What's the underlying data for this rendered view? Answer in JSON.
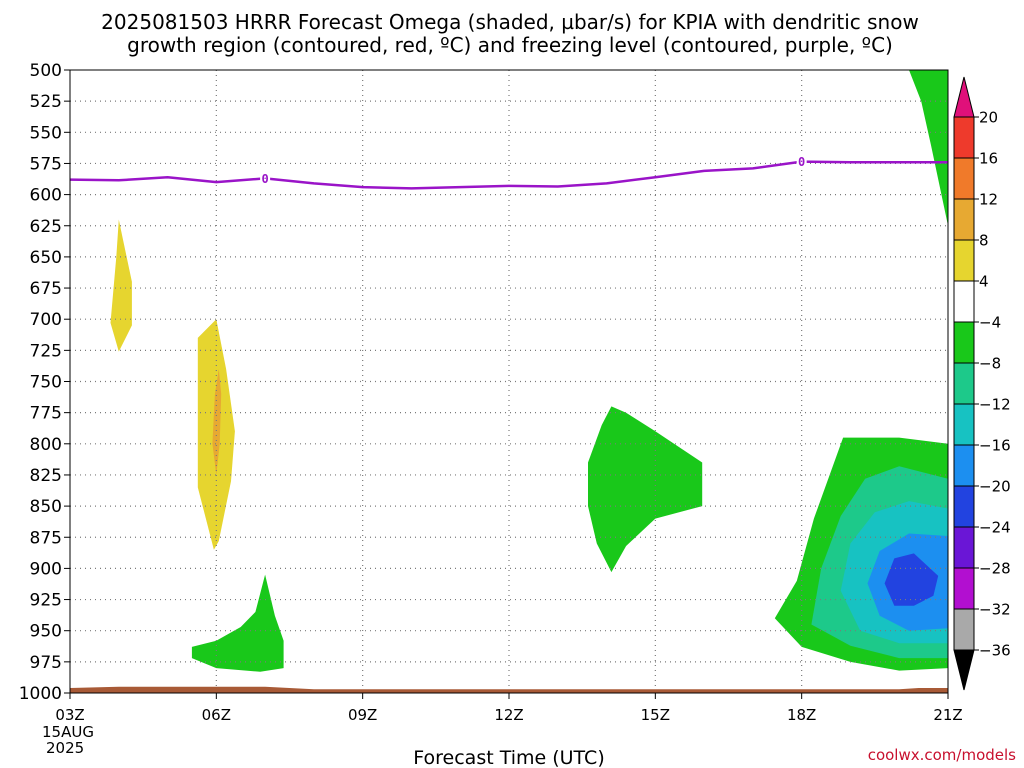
{
  "title": {
    "line1": "2025081503 HRRR Forecast Omega (shaded, µbar/s) for KPIA with dendritic snow",
    "line2": "growth region (contoured, red, ºC) and freezing level (contoured, purple, ºC)"
  },
  "credit": "coolwx.com/models",
  "chart_data": {
    "type": "heatmap",
    "title": "2025081503 HRRR Forecast Omega (shaded, µbar/s) for KPIA with dendritic snow growth region (contoured, red, ºC) and freezing level (contoured, purple, ºC)",
    "xlabel": "Forecast Time (UTC)",
    "ylabel": "",
    "x_ticks": [
      "03Z",
      "06Z",
      "09Z",
      "12Z",
      "15Z",
      "18Z",
      "21Z"
    ],
    "x_date_label": [
      "15AUG",
      "2025"
    ],
    "x_range_hours": [
      3,
      21
    ],
    "y_ticks": [
      500,
      525,
      550,
      575,
      600,
      625,
      650,
      675,
      700,
      725,
      750,
      775,
      800,
      825,
      850,
      875,
      900,
      925,
      950,
      975,
      1000
    ],
    "y_range_hpa": [
      500,
      1000
    ],
    "grid": true,
    "colorbar": {
      "labels": [
        "20",
        "16",
        "12",
        "8",
        "4",
        "−4",
        "−8",
        "−12",
        "−16",
        "−20",
        "−24",
        "−28",
        "−32",
        "−36"
      ],
      "bins": [
        {
          "lo": 20,
          "hi": null,
          "color": "#e0107a"
        },
        {
          "lo": 16,
          "hi": 20,
          "color": "#ee3a2c"
        },
        {
          "lo": 12,
          "hi": 16,
          "color": "#f07a2a"
        },
        {
          "lo": 8,
          "hi": 12,
          "color": "#e7a932"
        },
        {
          "lo": 4,
          "hi": 8,
          "color": "#e6d52f"
        },
        {
          "lo": -4,
          "hi": 4,
          "color": "#ffffff"
        },
        {
          "lo": -8,
          "hi": -4,
          "color": "#19c81a"
        },
        {
          "lo": -12,
          "hi": -8,
          "color": "#1dc98a"
        },
        {
          "lo": -16,
          "hi": -12,
          "color": "#17c2c2"
        },
        {
          "lo": -20,
          "hi": -16,
          "color": "#1c8ff0"
        },
        {
          "lo": -24,
          "hi": -20,
          "color": "#2243e0"
        },
        {
          "lo": -28,
          "hi": -24,
          "color": "#6a16d6"
        },
        {
          "lo": -32,
          "hi": -28,
          "color": "#b20fd0"
        },
        {
          "lo": -36,
          "hi": -32,
          "color": "#a9a9a9"
        },
        {
          "lo": null,
          "hi": -36,
          "color": "#000000"
        }
      ]
    },
    "freezing_level": {
      "label": "0",
      "color": "#9a14c8",
      "points": [
        [
          3,
          588
        ],
        [
          4,
          588.5
        ],
        [
          5,
          586
        ],
        [
          6,
          590
        ],
        [
          7,
          587
        ],
        [
          8,
          591
        ],
        [
          9,
          594
        ],
        [
          10,
          595
        ],
        [
          11,
          594
        ],
        [
          12,
          593
        ],
        [
          13,
          593.5
        ],
        [
          14,
          591
        ],
        [
          15,
          586
        ],
        [
          16,
          581
        ],
        [
          17,
          579
        ],
        [
          18,
          573.5
        ],
        [
          19,
          574
        ],
        [
          20,
          574
        ],
        [
          21,
          574
        ]
      ],
      "label_x": [
        7,
        18
      ]
    },
    "ground": {
      "color": "#a85a36",
      "points": [
        [
          3,
          996
        ],
        [
          4,
          995
        ],
        [
          7,
          995
        ],
        [
          8,
          997
        ],
        [
          20,
          997
        ],
        [
          20.4,
          996
        ],
        [
          21,
          996
        ]
      ]
    },
    "omega_regions": [
      {
        "name": "Omega +4 to +8 (03Z–04Z)",
        "color": "#e6d52f",
        "points": [
          [
            3.83,
            703
          ],
          [
            3.95,
            650
          ],
          [
            4.0,
            620
          ],
          [
            4.08,
            635
          ],
          [
            4.27,
            670
          ],
          [
            4.27,
            705
          ],
          [
            4.0,
            726
          ]
        ]
      },
      {
        "name": "Omega +4 to +8 (06Z)",
        "color": "#e6d52f",
        "points": [
          [
            5.62,
            835
          ],
          [
            5.62,
            715
          ],
          [
            6.0,
            700
          ],
          [
            6.2,
            740
          ],
          [
            6.38,
            790
          ],
          [
            6.3,
            830
          ],
          [
            6.05,
            878
          ],
          [
            5.95,
            885
          ]
        ]
      },
      {
        "name": "Omega +8 to +12 (06Z)",
        "color": "#e7a932",
        "points": [
          [
            5.92,
            800
          ],
          [
            5.97,
            760
          ],
          [
            6.05,
            740
          ],
          [
            6.1,
            760
          ],
          [
            6.07,
            800
          ],
          [
            6.0,
            825
          ]
        ]
      },
      {
        "name": "Omega −4 to −8 (06Z–07Z)",
        "color": "#19c81a",
        "points": [
          [
            5.5,
            972
          ],
          [
            5.5,
            963
          ],
          [
            6.0,
            958
          ],
          [
            6.5,
            947
          ],
          [
            6.8,
            935
          ],
          [
            7.0,
            905
          ],
          [
            7.2,
            938
          ],
          [
            7.38,
            958
          ],
          [
            7.38,
            980
          ],
          [
            6.9,
            983
          ],
          [
            6.0,
            980
          ]
        ]
      },
      {
        "name": "Omega −4 to −8 (14Z–15Z)",
        "color": "#19c81a",
        "points": [
          [
            13.62,
            850
          ],
          [
            13.62,
            815
          ],
          [
            13.9,
            785
          ],
          [
            14.1,
            770
          ],
          [
            14.4,
            775
          ],
          [
            15.0,
            790
          ],
          [
            15.96,
            815
          ],
          [
            15.96,
            850
          ],
          [
            15.0,
            860
          ],
          [
            14.4,
            882
          ],
          [
            14.1,
            903
          ],
          [
            13.8,
            880
          ]
        ]
      },
      {
        "name": "Omega −4 to −8 (upper right)",
        "color": "#19c81a",
        "points": [
          [
            20.2,
            500
          ],
          [
            21,
            500
          ],
          [
            21,
            625
          ],
          [
            20.92,
            610
          ],
          [
            20.65,
            560
          ],
          [
            20.45,
            525
          ]
        ]
      },
      {
        "name": "Omega −4 to −8 (lower right)",
        "color": "#19c81a",
        "points": [
          [
            17.45,
            940
          ],
          [
            17.9,
            910
          ],
          [
            18.25,
            860
          ],
          [
            18.85,
            795
          ],
          [
            20.0,
            795
          ],
          [
            21,
            800
          ],
          [
            21,
            980
          ],
          [
            20.0,
            982
          ],
          [
            19.0,
            975
          ],
          [
            18.0,
            963
          ]
        ]
      },
      {
        "name": "Omega −8 to −12",
        "color": "#1dc98a",
        "points": [
          [
            18.2,
            945
          ],
          [
            18.4,
            900
          ],
          [
            18.8,
            858
          ],
          [
            19.3,
            828
          ],
          [
            20.0,
            818
          ],
          [
            21,
            828
          ],
          [
            21,
            972
          ],
          [
            20.0,
            972
          ],
          [
            19.0,
            962
          ]
        ]
      },
      {
        "name": "Omega −12 to −16",
        "color": "#17c2c2",
        "points": [
          [
            18.8,
            918
          ],
          [
            19.0,
            880
          ],
          [
            19.5,
            855
          ],
          [
            20.2,
            846
          ],
          [
            21,
            852
          ],
          [
            21,
            960
          ],
          [
            20.0,
            960
          ],
          [
            19.2,
            950
          ]
        ]
      },
      {
        "name": "Omega −16 to −20",
        "color": "#1c8ff0",
        "points": [
          [
            19.35,
            912
          ],
          [
            19.6,
            886
          ],
          [
            20.2,
            872
          ],
          [
            21,
            874
          ],
          [
            21,
            948
          ],
          [
            20.2,
            950
          ],
          [
            19.6,
            938
          ]
        ]
      },
      {
        "name": "Omega −20 to −24",
        "color": "#2243e0",
        "points": [
          [
            19.7,
            912
          ],
          [
            19.9,
            892
          ],
          [
            20.3,
            888
          ],
          [
            20.8,
            906
          ],
          [
            20.7,
            922
          ],
          [
            20.3,
            930
          ],
          [
            19.9,
            930
          ]
        ]
      }
    ]
  }
}
